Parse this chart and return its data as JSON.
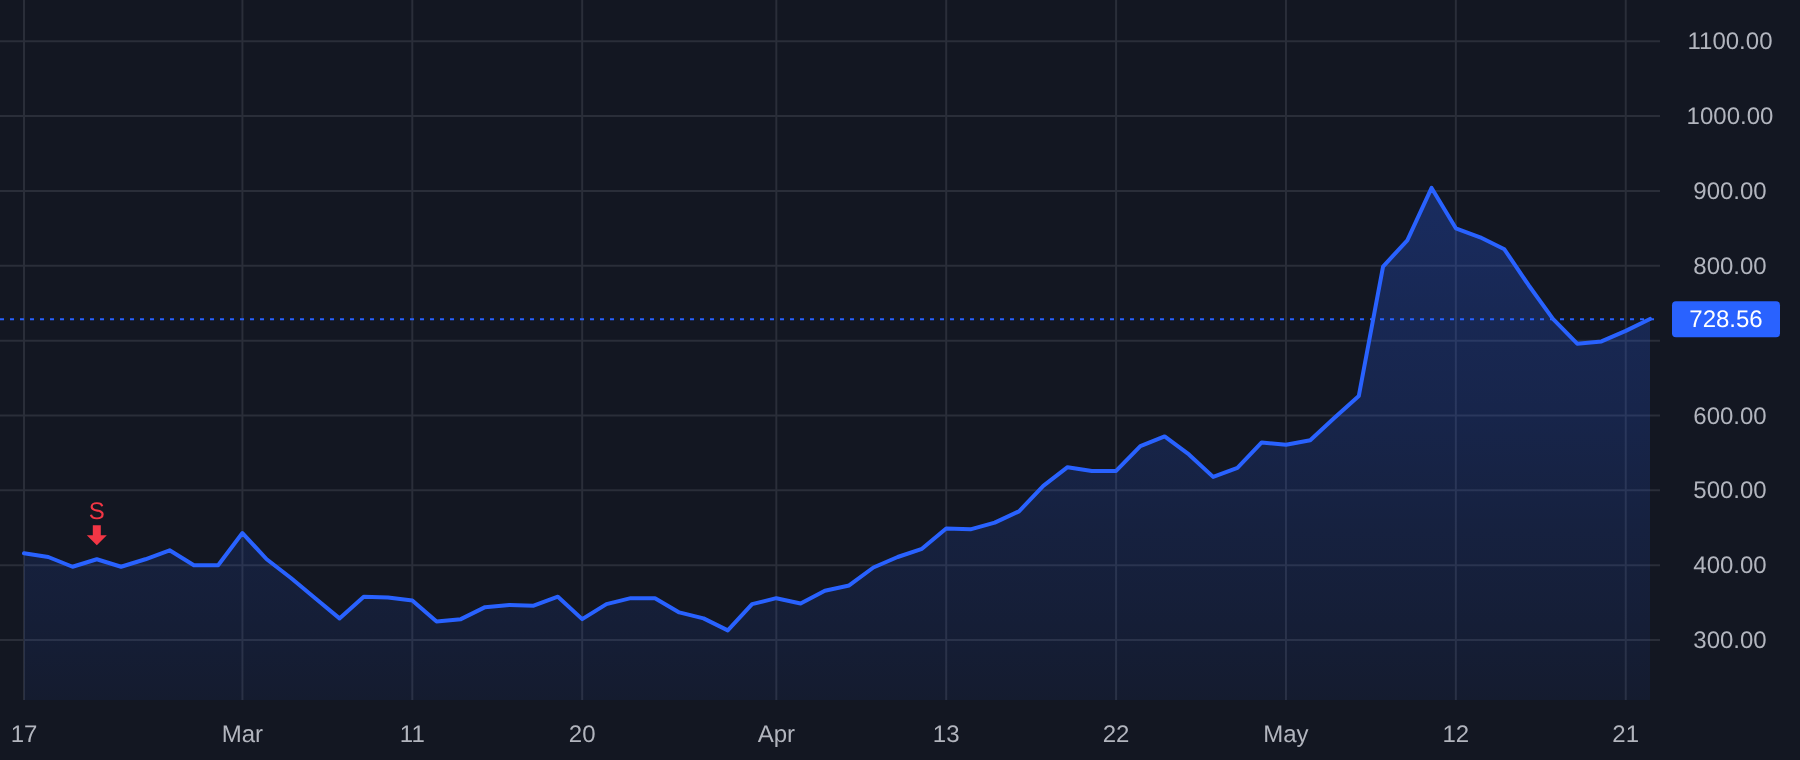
{
  "chart_data": {
    "type": "area",
    "categories": [
      "17",
      null,
      null,
      null,
      null,
      null,
      null,
      null,
      null,
      "Mar",
      null,
      null,
      null,
      null,
      null,
      null,
      "11",
      null,
      null,
      null,
      null,
      null,
      null,
      "20",
      null,
      null,
      null,
      null,
      null,
      null,
      null,
      "Apr",
      null,
      null,
      null,
      null,
      null,
      null,
      "13",
      null,
      null,
      null,
      null,
      null,
      null,
      "22",
      null,
      null,
      null,
      null,
      null,
      null,
      "May",
      null,
      null,
      null,
      null,
      null,
      null,
      "12",
      null,
      null,
      null,
      null,
      null,
      null,
      "21",
      null
    ],
    "series": [
      {
        "color": "#2962ff",
        "values": [
          416,
          411,
          398,
          408,
          398,
          408,
          420,
          400,
          400,
          443,
          408,
          383,
          356,
          329,
          358,
          357,
          353,
          325,
          328,
          344,
          347,
          346,
          358,
          328,
          348,
          356,
          356,
          337,
          329,
          313,
          348,
          356,
          349,
          366,
          373,
          397,
          411,
          422,
          449,
          448,
          457,
          472,
          506,
          531,
          526,
          526,
          559,
          572,
          548,
          518,
          530,
          564,
          561,
          567,
          597,
          626,
          799,
          834,
          904,
          850,
          838,
          822,
          774,
          729,
          696,
          699,
          713,
          729
        ]
      }
    ],
    "ylim": [
      220,
      1155
    ],
    "yticks": [
      {
        "value": 300,
        "label": "300.00"
      },
      {
        "value": 400,
        "label": "400.00"
      },
      {
        "value": 500,
        "label": "500.00"
      },
      {
        "value": 600,
        "label": "600.00"
      },
      {
        "value": 700,
        "label": null
      },
      {
        "value": 800,
        "label": "800.00"
      },
      {
        "value": 900,
        "label": "900.00"
      },
      {
        "value": 1000,
        "label": "1000.00"
      },
      {
        "value": 1100,
        "label": "1100.00"
      }
    ],
    "grid": true,
    "ref_lines": [
      {
        "axis": "y",
        "value": 728.56,
        "label": "728.56",
        "color": "#2962ff",
        "line_style": "dotted"
      }
    ],
    "annotations": [
      {
        "text": "S",
        "y": 408
      }
    ]
  }
}
